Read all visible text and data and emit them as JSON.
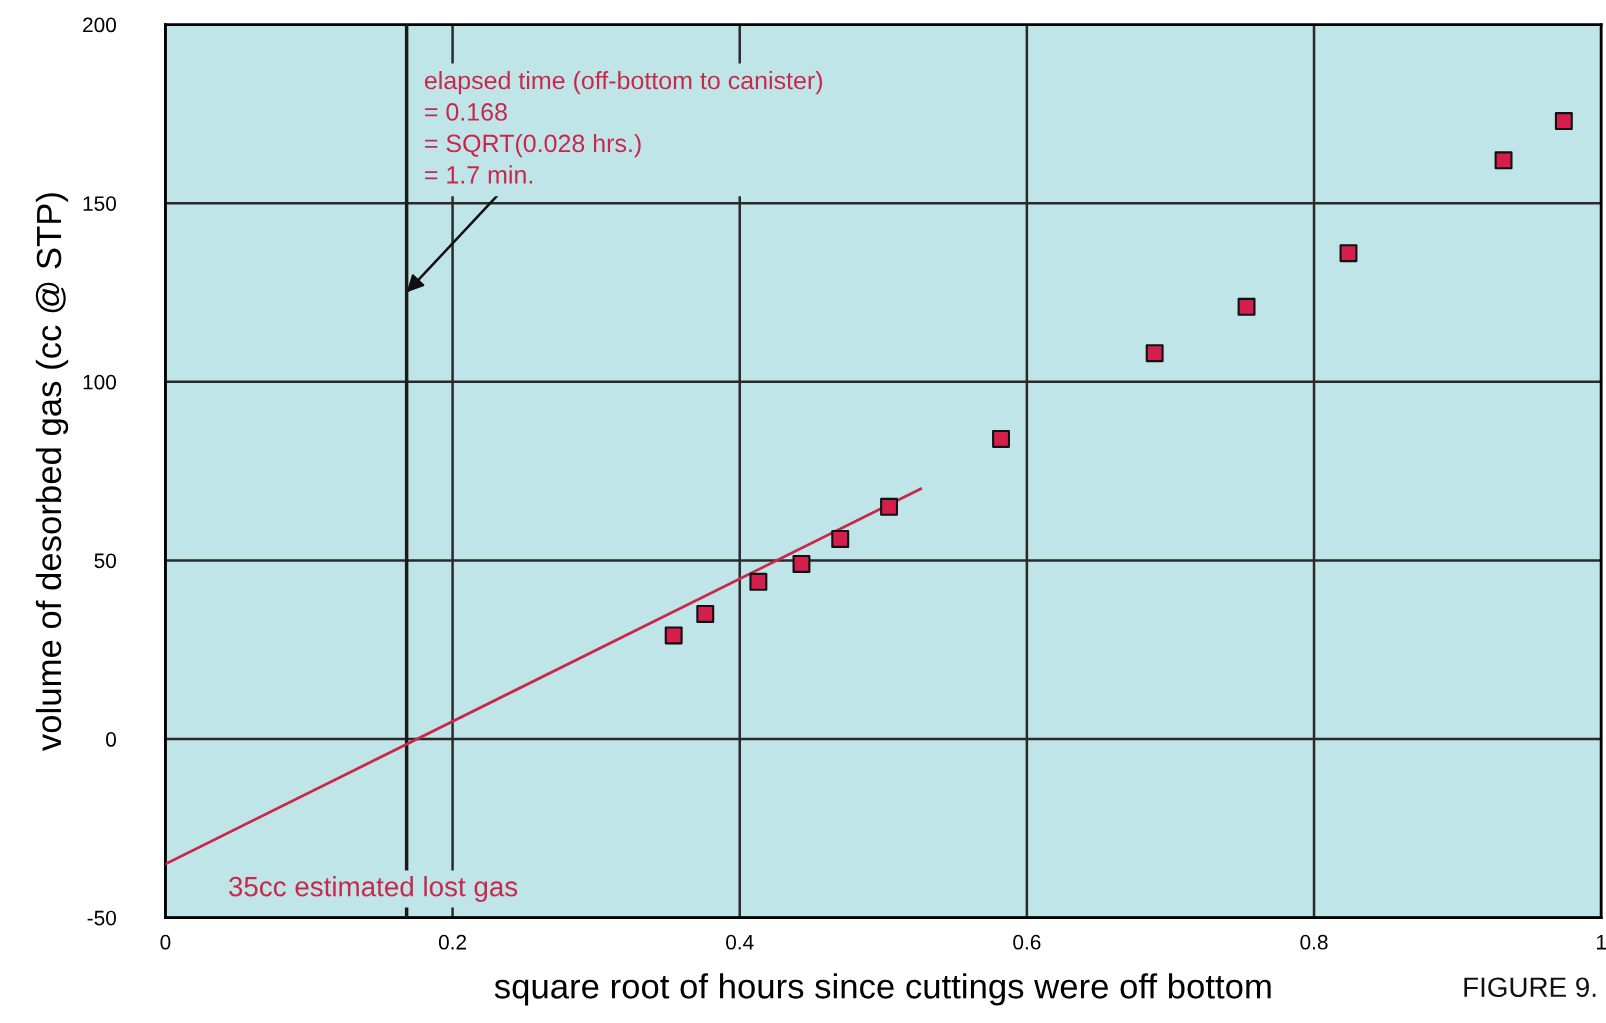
{
  "chart_data": {
    "type": "scatter",
    "xlabel": "square root of hours since cuttings were off bottom",
    "ylabel": "volume of desorbed gas (cc @ STP)",
    "series": [
      {
        "color": "#d41f4c",
        "marker": "square",
        "x": [
          0.354,
          0.376,
          0.413,
          0.443,
          0.47,
          0.504,
          0.582,
          0.689,
          0.753,
          0.824,
          0.932,
          0.974
        ],
        "values": [
          29,
          35,
          44,
          49,
          56,
          65,
          84,
          108,
          121,
          136,
          162,
          173
        ]
      },
      {
        "type": "line",
        "color": "#c8284a",
        "marker": "none",
        "x": [
          0,
          0.526
        ],
        "values": [
          -35,
          70
        ]
      }
    ],
    "xlim": [
      0,
      1
    ],
    "ylim": [
      -50,
      200
    ],
    "xticks": [
      0,
      0.2,
      0.4,
      0.6,
      0.8,
      1
    ],
    "yticks": [
      {
        "value": -50,
        "label": "-50"
      },
      0,
      50,
      100,
      150,
      200
    ],
    "grid": true,
    "ref_lines": [
      {
        "axis": "x",
        "value": 0.168,
        "color": "#1a1a1a"
      }
    ],
    "annotations": [
      {
        "text": "elapsed time (off-bottom to canister)\n= 0.168\n= SQRT(0.028 hrs.)\n= 1.7 min.",
        "x": 0.168,
        "y": 125
      },
      {
        "text": "35cc estimated lost gas",
        "x": 0,
        "y": -35
      },
      "FIGURE 9."
    ]
  }
}
